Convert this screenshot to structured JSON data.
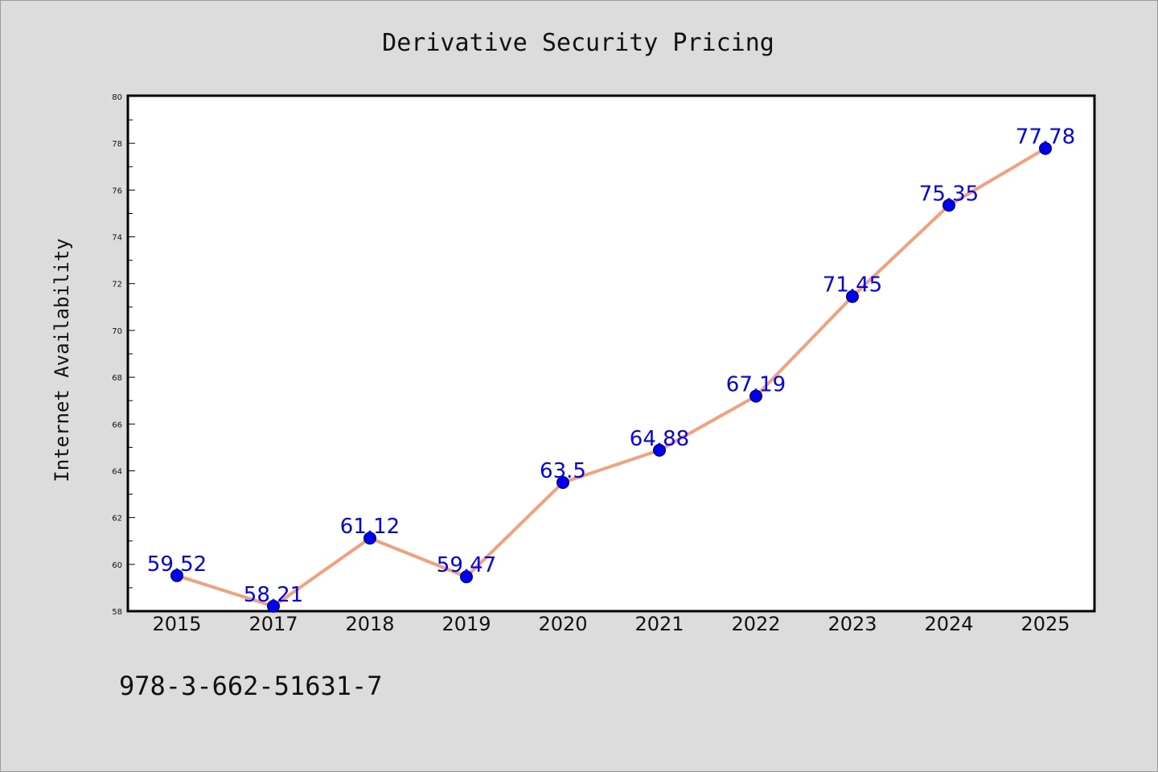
{
  "chart_data": {
    "type": "line",
    "title": "Derivative Security Pricing",
    "xlabel": "",
    "ylabel": "Internet Availability",
    "categories": [
      "2015",
      "2017",
      "2018",
      "2019",
      "2020",
      "2021",
      "2022",
      "2023",
      "2024",
      "2025"
    ],
    "series": [
      {
        "values": [
          59.52,
          58.21,
          61.12,
          59.47,
          63.5,
          64.88,
          67.19,
          71.45,
          75.35,
          77.78
        ],
        "data_labels": [
          "59.52",
          "58.21",
          "61.12",
          "59.47",
          "63.5",
          "64.88",
          "67.19",
          "71.45",
          "75.35",
          "77.78"
        ]
      }
    ],
    "ylim": [
      58,
      80
    ],
    "yticks": [
      "58",
      "60",
      "62",
      "64",
      "66",
      "68",
      "70",
      "72",
      "74",
      "76",
      "78",
      "80"
    ],
    "grid": false,
    "legend": "none",
    "colors": {
      "line": "#f4a07a",
      "marker": "#0000ee",
      "marker_edge": "#000066",
      "data_label": "#0000ff",
      "plot_background": "#ffffff",
      "figure_background": "#dcdcdc"
    }
  },
  "footer": {
    "isbn": "978-3-662-51631-7"
  }
}
